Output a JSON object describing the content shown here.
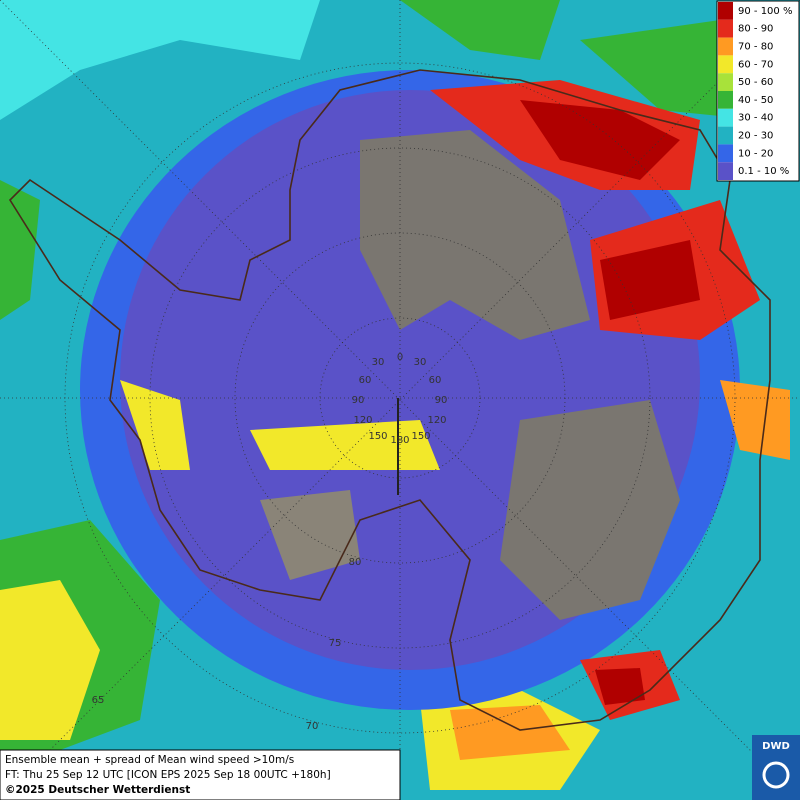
{
  "legend": {
    "items": [
      {
        "label": "90 - 100 %",
        "color": "#b00000"
      },
      {
        "label": "80 - 90",
        "color": "#e42a1c"
      },
      {
        "label": "70 - 80",
        "color": "#ff9a22"
      },
      {
        "label": "60 - 70",
        "color": "#f2e82a"
      },
      {
        "label": "50 - 60",
        "color": "#a8e23a"
      },
      {
        "label": "40 - 50",
        "color": "#36b436"
      },
      {
        "label": "30 - 40",
        "color": "#44e4e4"
      },
      {
        "label": "20 - 30",
        "color": "#22b2c2"
      },
      {
        "label": "10 - 20",
        "color": "#3466e8"
      },
      {
        "label": "0.1 - 10 %",
        "color": "#5a52c8"
      }
    ]
  },
  "grid_labels": {
    "longitude": [
      "0",
      "30",
      "30",
      "60",
      "60",
      "90",
      "90",
      "120",
      "120",
      "150",
      "150",
      "180"
    ],
    "latitude": [
      "80",
      "75",
      "70",
      "65"
    ]
  },
  "caption": {
    "line1": "Ensemble mean + spread of Mean wind speed >10m/s",
    "line2": "FT: Thu 25 Sep 12 UTC [ICON EPS 2025 Sep 18 00UTC +180h]",
    "copyright": "©2025 Deutscher Wetterdienst"
  },
  "logo": "DWD"
}
